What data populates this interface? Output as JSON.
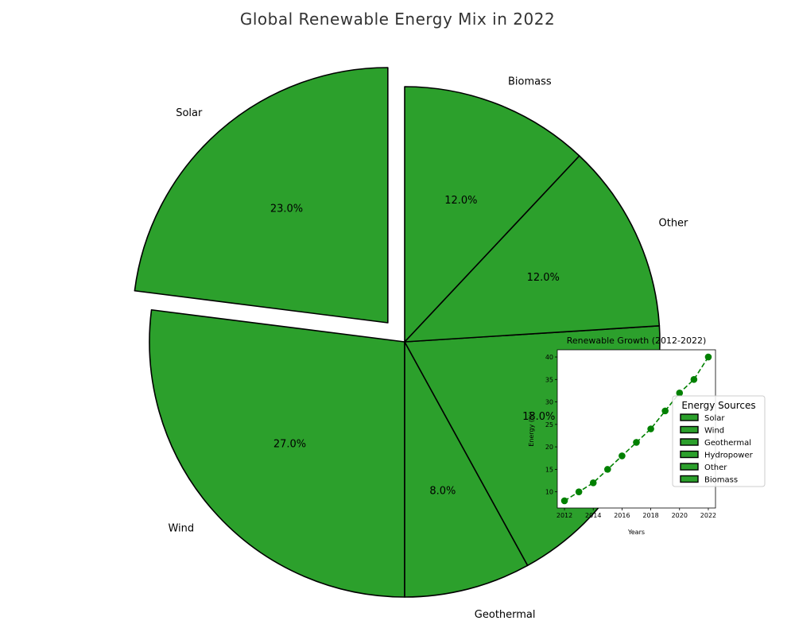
{
  "chart_data": [
    {
      "type": "pie",
      "title": "Global Renewable Energy Mix in 2022",
      "categories": [
        "Solar",
        "Wind",
        "Geothermal",
        "Hydropower",
        "Other",
        "Biomass"
      ],
      "values": [
        23,
        27,
        8,
        18,
        12,
        12
      ],
      "value_labels": [
        "23.0%",
        "27.0%",
        "8.0%",
        "18.0%",
        "12.0%",
        "12.0%"
      ],
      "exploded": [
        "Solar"
      ],
      "slice_color": "#2ca02c",
      "edge_color": "#000000",
      "legend": {
        "title": "Energy Sources",
        "entries": [
          "Solar",
          "Wind",
          "Geothermal",
          "Hydropower",
          "Other",
          "Biomass"
        ],
        "placement": "right"
      }
    },
    {
      "type": "line",
      "title": "Renewable Growth (2012-2022)",
      "xlabel": "Years",
      "ylabel": "Energy (%)",
      "x": [
        2012,
        2013,
        2014,
        2015,
        2016,
        2017,
        2018,
        2019,
        2020,
        2021,
        2022
      ],
      "y": [
        8,
        10,
        12,
        15,
        18,
        21,
        24,
        28,
        32,
        35,
        40
      ],
      "xlim": [
        2011.5,
        2022.5
      ],
      "ylim": [
        6.4,
        41.6
      ],
      "xticks": [
        "2012",
        "2014",
        "2016",
        "2018",
        "2020",
        "2022"
      ],
      "yticks": [
        "10",
        "15",
        "20",
        "25",
        "30",
        "35",
        "40"
      ],
      "line_color": "#008000",
      "line_style": "dashed",
      "marker": "circle",
      "grid": false
    }
  ]
}
